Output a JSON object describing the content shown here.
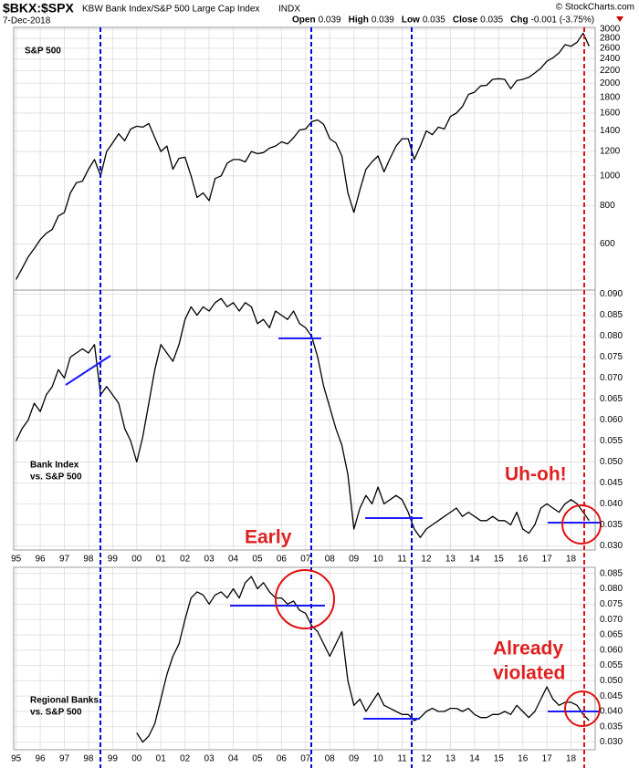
{
  "header": {
    "symbol": "$BKX:$SPX",
    "description": "KBW Bank Index/S&P 500 Large Cap Index",
    "exchange": "INDX",
    "date": "7-Dec-2018",
    "credit": "© StockCharts.com",
    "quote": [
      {
        "label": "Open",
        "value": "0.039"
      },
      {
        "label": "High",
        "value": "0.039"
      },
      {
        "label": "Low",
        "value": "0.035"
      },
      {
        "label": "Close",
        "value": "0.035"
      },
      {
        "label": "Chg",
        "value": "-0.001 (-3.75%)"
      }
    ]
  },
  "chart_data": [
    {
      "type": "line",
      "panel_label": [
        "S&P 500"
      ],
      "log_scale": true,
      "grid": true,
      "color": "#000000",
      "x": [
        1995,
        1995.25,
        1995.5,
        1995.75,
        1996,
        1996.25,
        1996.5,
        1996.75,
        1997,
        1997.25,
        1997.5,
        1997.75,
        1998,
        1998.25,
        1998.5,
        1998.75,
        1999,
        1999.25,
        1999.5,
        1999.75,
        2000,
        2000.25,
        2000.5,
        2000.75,
        2001,
        2001.25,
        2001.5,
        2001.75,
        2002,
        2002.25,
        2002.5,
        2002.75,
        2003,
        2003.25,
        2003.5,
        2003.75,
        2004,
        2004.25,
        2004.5,
        2004.75,
        2005,
        2005.25,
        2005.5,
        2005.75,
        2006,
        2006.25,
        2006.5,
        2006.75,
        2007,
        2007.25,
        2007.5,
        2007.75,
        2008,
        2008.25,
        2008.5,
        2008.75,
        2009,
        2009.25,
        2009.5,
        2009.75,
        2010,
        2010.25,
        2010.5,
        2010.75,
        2011,
        2011.25,
        2011.5,
        2011.75,
        2012,
        2012.25,
        2012.5,
        2012.75,
        2013,
        2013.25,
        2013.5,
        2013.75,
        2014,
        2014.25,
        2014.5,
        2014.75,
        2015,
        2015.25,
        2015.5,
        2015.75,
        2016,
        2016.25,
        2016.5,
        2016.75,
        2017,
        2017.25,
        2017.5,
        2017.75,
        2018,
        2018.25,
        2018.5,
        2018.75
      ],
      "values": [
        460,
        500,
        545,
        580,
        620,
        650,
        670,
        740,
        760,
        880,
        950,
        960,
        1050,
        1130,
        1000,
        1200,
        1280,
        1370,
        1300,
        1420,
        1450,
        1440,
        1480,
        1330,
        1200,
        1250,
        1050,
        1140,
        1150,
        1000,
        850,
        880,
        830,
        980,
        1000,
        1100,
        1130,
        1130,
        1110,
        1200,
        1180,
        1190,
        1230,
        1250,
        1290,
        1270,
        1330,
        1410,
        1420,
        1500,
        1520,
        1470,
        1320,
        1280,
        1160,
        880,
        760,
        900,
        1050,
        1110,
        1160,
        1030,
        1140,
        1250,
        1320,
        1320,
        1130,
        1250,
        1400,
        1360,
        1440,
        1420,
        1560,
        1600,
        1680,
        1840,
        1870,
        1960,
        1970,
        2060,
        2070,
        2060,
        1920,
        2040,
        2060,
        2090,
        2160,
        2240,
        2360,
        2420,
        2510,
        2670,
        2640,
        2720,
        2910,
        2640
      ],
      "xlim": [
        1994.9,
        2019.0
      ],
      "xticks": [
        1995,
        1996,
        1997,
        1998,
        1999,
        2000,
        2001,
        2002,
        2003,
        2004,
        2005,
        2006,
        2007,
        2008,
        2009,
        2010,
        2011,
        2012,
        2013,
        2014,
        2015,
        2016,
        2017,
        2018
      ],
      "ylim": [
        425,
        3040
      ],
      "yticks": [
        600,
        800,
        1000,
        1200,
        1400,
        1600,
        1800,
        2000,
        2200,
        2400,
        2600,
        2800,
        3000
      ]
    },
    {
      "type": "line",
      "panel_label": [
        "Bank Index",
        "vs. S&P 500"
      ],
      "annotations": [
        "Early",
        "Uh-oh!"
      ],
      "grid": true,
      "color": "#000000",
      "x": [
        1995,
        1995.25,
        1995.5,
        1995.75,
        1996,
        1996.25,
        1996.5,
        1996.75,
        1997,
        1997.25,
        1997.5,
        1997.75,
        1998,
        1998.25,
        1998.5,
        1998.75,
        1999,
        1999.25,
        1999.5,
        1999.75,
        2000,
        2000.25,
        2000.5,
        2000.75,
        2001,
        2001.25,
        2001.5,
        2001.75,
        2002,
        2002.25,
        2002.5,
        2002.75,
        2003,
        2003.25,
        2003.5,
        2003.75,
        2004,
        2004.25,
        2004.5,
        2004.75,
        2005,
        2005.25,
        2005.5,
        2005.75,
        2006,
        2006.25,
        2006.5,
        2006.75,
        2007,
        2007.25,
        2007.5,
        2007.75,
        2008,
        2008.25,
        2008.5,
        2008.75,
        2009,
        2009.25,
        2009.5,
        2009.75,
        2010,
        2010.25,
        2010.5,
        2010.75,
        2011,
        2011.25,
        2011.5,
        2011.75,
        2012,
        2012.25,
        2012.5,
        2012.75,
        2013,
        2013.25,
        2013.5,
        2013.75,
        2014,
        2014.25,
        2014.5,
        2014.75,
        2015,
        2015.25,
        2015.5,
        2015.75,
        2016,
        2016.25,
        2016.5,
        2016.75,
        2017,
        2017.25,
        2017.5,
        2017.75,
        2018,
        2018.25,
        2018.5,
        2018.75
      ],
      "values": [
        0.055,
        0.058,
        0.06,
        0.064,
        0.062,
        0.066,
        0.068,
        0.072,
        0.07,
        0.075,
        0.076,
        0.077,
        0.076,
        0.078,
        0.066,
        0.068,
        0.066,
        0.064,
        0.058,
        0.055,
        0.05,
        0.056,
        0.064,
        0.072,
        0.078,
        0.076,
        0.074,
        0.078,
        0.084,
        0.087,
        0.085,
        0.087,
        0.086,
        0.088,
        0.089,
        0.087,
        0.088,
        0.086,
        0.088,
        0.087,
        0.083,
        0.084,
        0.082,
        0.086,
        0.085,
        0.084,
        0.086,
        0.083,
        0.082,
        0.08,
        0.075,
        0.068,
        0.063,
        0.058,
        0.054,
        0.047,
        0.034,
        0.039,
        0.042,
        0.04,
        0.044,
        0.04,
        0.041,
        0.042,
        0.041,
        0.038,
        0.034,
        0.032,
        0.034,
        0.035,
        0.036,
        0.037,
        0.038,
        0.039,
        0.037,
        0.038,
        0.037,
        0.036,
        0.036,
        0.037,
        0.036,
        0.036,
        0.035,
        0.038,
        0.034,
        0.033,
        0.035,
        0.039,
        0.04,
        0.039,
        0.038,
        0.04,
        0.041,
        0.04,
        0.038,
        0.036
      ],
      "xlim": [
        1994.9,
        2019.0
      ],
      "xticks": [
        {
          "value": 1995,
          "label": "95"
        },
        {
          "value": 1996,
          "label": "96"
        },
        {
          "value": 1997,
          "label": "97"
        },
        {
          "value": 1998,
          "label": "98"
        },
        {
          "value": 1999,
          "label": "99"
        },
        {
          "value": 2000,
          "label": "00"
        },
        {
          "value": 2001,
          "label": "01"
        },
        {
          "value": 2002,
          "label": "02"
        },
        {
          "value": 2003,
          "label": "03"
        },
        {
          "value": 2004,
          "label": "04"
        },
        {
          "value": 2005,
          "label": "05"
        },
        {
          "value": 2006,
          "label": "06"
        },
        {
          "value": 2007,
          "label": "07"
        },
        {
          "value": 2008,
          "label": "08"
        },
        {
          "value": 2009,
          "label": "09"
        },
        {
          "value": 2010,
          "label": "10"
        },
        {
          "value": 2011,
          "label": "11"
        },
        {
          "value": 2012,
          "label": "12"
        },
        {
          "value": 2013,
          "label": "13"
        },
        {
          "value": 2014,
          "label": "14"
        },
        {
          "value": 2015,
          "label": "15"
        },
        {
          "value": 2016,
          "label": "16"
        },
        {
          "value": 2017,
          "label": "17"
        },
        {
          "value": 2018,
          "label": "18"
        }
      ],
      "ylim": [
        0.029,
        0.091
      ],
      "yticks": [
        {
          "value": 0.03,
          "label": "0.030"
        },
        0.035,
        {
          "value": 0.04,
          "label": "0.040"
        },
        0.045,
        {
          "value": 0.05,
          "label": "0.050"
        },
        0.055,
        {
          "value": 0.06,
          "label": "0.060"
        },
        0.065,
        {
          "value": 0.07,
          "label": "0.070"
        },
        0.075,
        {
          "value": 0.08,
          "label": "0.080"
        },
        0.085,
        {
          "value": 0.09,
          "label": "0.090"
        }
      ]
    },
    {
      "type": "line",
      "panel_label": [
        "Regional Banks",
        "vs. S&P 500"
      ],
      "annotations": [
        "Already",
        "violated"
      ],
      "grid": true,
      "color": "#000000",
      "x": [
        1995,
        1995.25,
        1995.5,
        1995.75,
        1996,
        1996.25,
        1996.5,
        1996.75,
        1997,
        1997.25,
        1997.5,
        1997.75,
        1998,
        1998.25,
        1998.5,
        1998.75,
        1999,
        1999.25,
        1999.5,
        1999.75,
        2000,
        2000.25,
        2000.5,
        2000.75,
        2001,
        2001.25,
        2001.5,
        2001.75,
        2002,
        2002.25,
        2002.5,
        2002.75,
        2003,
        2003.25,
        2003.5,
        2003.75,
        2004,
        2004.25,
        2004.5,
        2004.75,
        2005,
        2005.25,
        2005.5,
        2005.75,
        2006,
        2006.25,
        2006.5,
        2006.75,
        2007,
        2007.25,
        2007.5,
        2007.75,
        2008,
        2008.25,
        2008.5,
        2008.75,
        2009,
        2009.25,
        2009.5,
        2009.75,
        2010,
        2010.25,
        2010.5,
        2010.75,
        2011,
        2011.25,
        2011.5,
        2011.75,
        2012,
        2012.25,
        2012.5,
        2012.75,
        2013,
        2013.25,
        2013.5,
        2013.75,
        2014,
        2014.25,
        2014.5,
        2014.75,
        2015,
        2015.25,
        2015.5,
        2015.75,
        2016,
        2016.25,
        2016.5,
        2016.75,
        2017,
        2017.25,
        2017.5,
        2017.75,
        2018,
        2018.25,
        2018.5,
        2018.75
      ],
      "values": [
        null,
        null,
        null,
        null,
        null,
        null,
        null,
        null,
        null,
        null,
        null,
        null,
        null,
        null,
        null,
        null,
        null,
        null,
        null,
        null,
        0.033,
        0.03,
        0.032,
        0.036,
        0.044,
        0.052,
        0.058,
        0.062,
        0.07,
        0.077,
        0.079,
        0.078,
        0.075,
        0.078,
        0.079,
        0.077,
        0.08,
        0.077,
        0.082,
        0.084,
        0.08,
        0.082,
        0.079,
        0.077,
        0.077,
        0.075,
        0.076,
        0.073,
        0.072,
        0.068,
        0.066,
        0.062,
        0.058,
        0.062,
        0.066,
        0.05,
        0.042,
        0.044,
        0.04,
        0.043,
        0.046,
        0.042,
        0.041,
        0.04,
        0.039,
        0.039,
        0.037,
        0.038,
        0.04,
        0.041,
        0.04,
        0.04,
        0.041,
        0.041,
        0.04,
        0.041,
        0.039,
        0.038,
        0.038,
        0.039,
        0.039,
        0.04,
        0.039,
        0.042,
        0.04,
        0.038,
        0.04,
        0.044,
        0.048,
        0.044,
        0.042,
        0.043,
        0.043,
        0.042,
        0.039,
        0.037
      ],
      "xlim": [
        1994.9,
        2019.0
      ],
      "xticks": [
        {
          "value": 1995,
          "label": "95"
        },
        {
          "value": 1996,
          "label": "96"
        },
        {
          "value": 1997,
          "label": "97"
        },
        {
          "value": 1998,
          "label": "98"
        },
        {
          "value": 1999,
          "label": "99"
        },
        {
          "value": 2000,
          "label": "00"
        },
        {
          "value": 2001,
          "label": "01"
        },
        {
          "value": 2002,
          "label": "02"
        },
        {
          "value": 2003,
          "label": "03"
        },
        {
          "value": 2004,
          "label": "04"
        },
        {
          "value": 2005,
          "label": "05"
        },
        {
          "value": 2006,
          "label": "06"
        },
        {
          "value": 2007,
          "label": "07"
        },
        {
          "value": 2008,
          "label": "08"
        },
        {
          "value": 2009,
          "label": "09"
        },
        {
          "value": 2010,
          "label": "10"
        },
        {
          "value": 2011,
          "label": "11"
        },
        {
          "value": 2012,
          "label": "12"
        },
        {
          "value": 2013,
          "label": "13"
        },
        {
          "value": 2014,
          "label": "14"
        },
        {
          "value": 2015,
          "label": "15"
        },
        {
          "value": 2016,
          "label": "16"
        },
        {
          "value": 2017,
          "label": "17"
        },
        {
          "value": 2018,
          "label": "18"
        }
      ],
      "ylim": [
        0.0275,
        0.087
      ],
      "yticks": [
        {
          "value": 0.03,
          "label": "0.030"
        },
        0.035,
        {
          "value": 0.04,
          "label": "0.040"
        },
        0.045,
        {
          "value": 0.05,
          "label": "0.050"
        },
        0.055,
        {
          "value": 0.06,
          "label": "0.060"
        },
        0.065,
        {
          "value": 0.07,
          "label": "0.070"
        },
        0.075,
        {
          "value": 0.08,
          "label": "0.080"
        },
        0.085
      ]
    }
  ]
}
